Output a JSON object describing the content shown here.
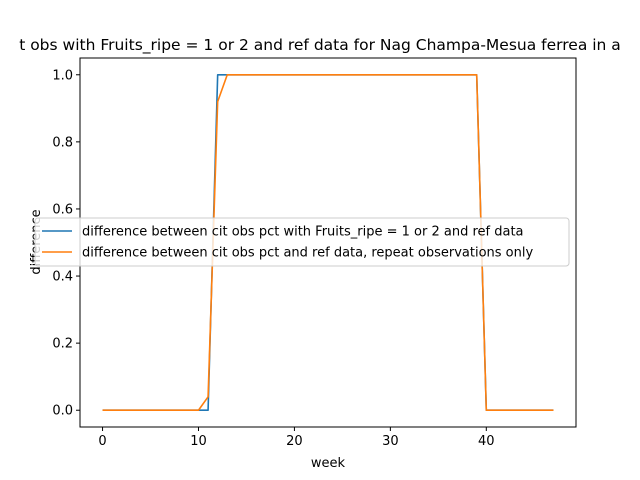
{
  "chart_data": {
    "type": "line",
    "title": "t obs with Fruits_ripe = 1 or 2 and ref data for Nag Champa-Mesua ferrea in a",
    "xlabel": "week",
    "ylabel": "difference",
    "xlim": [
      -2.35,
      49.35
    ],
    "ylim": [
      -0.05,
      1.05
    ],
    "xticks": [
      0,
      10,
      20,
      30,
      40
    ],
    "yticks": [
      0.0,
      0.2,
      0.4,
      0.6,
      0.8,
      1.0
    ],
    "xtick_labels": [
      "0",
      "10",
      "20",
      "30",
      "40"
    ],
    "ytick_labels": [
      "0.0",
      "0.2",
      "0.4",
      "0.6",
      "0.8",
      "1.0"
    ],
    "grid": false,
    "legend_position": "center-left",
    "series": [
      {
        "name": "difference between cit obs pct with Fruits_ripe = 1 or 2 and ref data",
        "color": "#1f77b4",
        "x": [
          0,
          11,
          12,
          39,
          40,
          47
        ],
        "y": [
          0,
          0,
          1,
          1,
          0,
          0
        ]
      },
      {
        "name": "difference between cit obs pct and ref data, repeat observations only",
        "color": "#ff7f0e",
        "x": [
          0,
          10,
          11,
          12,
          13,
          39,
          40,
          47
        ],
        "y": [
          0,
          0,
          0.04,
          0.92,
          1,
          1,
          0,
          0
        ]
      }
    ]
  }
}
